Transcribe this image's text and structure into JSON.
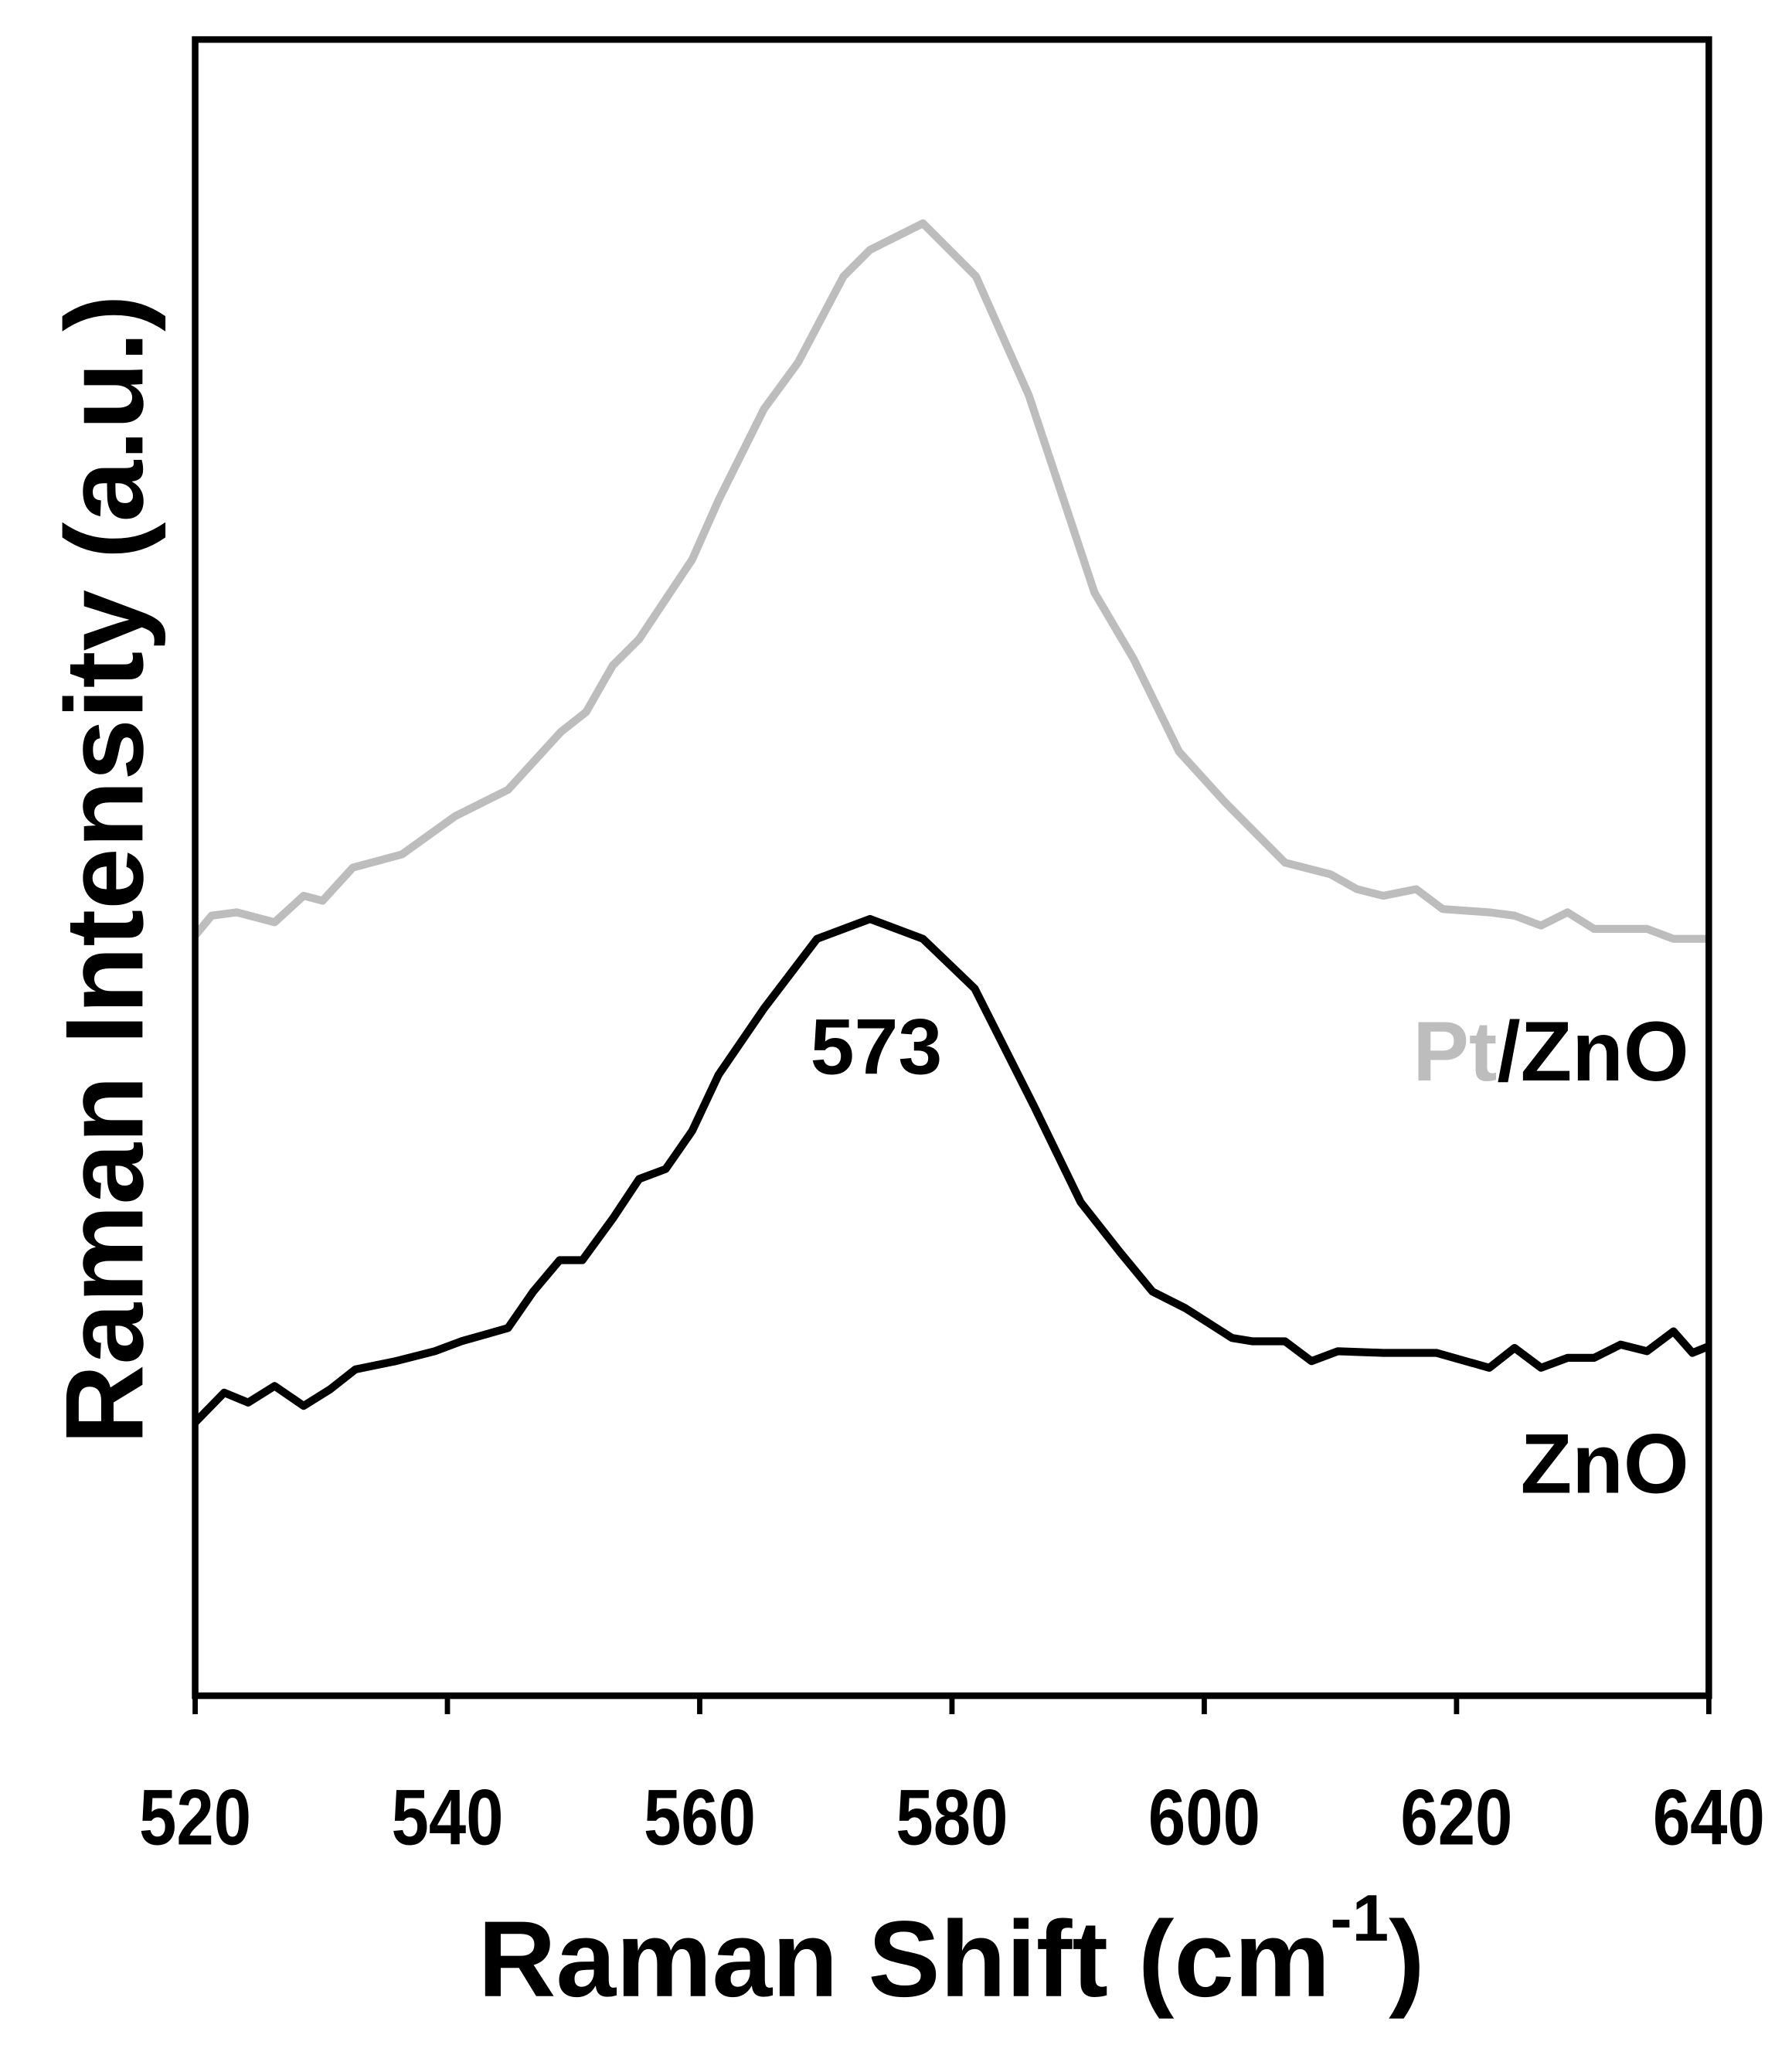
{
  "chart_data": {
    "type": "line",
    "xlabel": [
      "Raman Shift (cm",
      "-1",
      ")"
    ],
    "ylabel": "Raman Intensity (a.u.)",
    "xlim": [
      520,
      640
    ],
    "xticks": [
      520,
      540,
      560,
      580,
      600,
      620,
      640
    ],
    "ylim": [
      0,
      100
    ],
    "annotations": [
      "573"
    ],
    "series": [
      {
        "name_parts": [
          "Pt",
          "/ZnO"
        ],
        "name_colors": [
          "#bdbdbd",
          "#000000"
        ],
        "color": "#bdbdbd",
        "x": [
          520,
          521.3,
          523.3,
          526.3,
          528.6,
          530.1,
          532.5,
          536.4,
          540.6,
          544.8,
          549.0,
          551.0,
          553.1,
          555.2,
          559.4,
          561.5,
          565.1,
          567.8,
          571.4,
          573.5,
          577.7,
          581.9,
          586.1,
          588.2,
          591.3,
          594.4,
          598.0,
          601.7,
          606.4,
          610.0,
          612.1,
          614.2,
          616.8,
          618.9,
          622.6,
          624.6,
          626.7,
          628.8,
          630.9,
          635.1,
          637.2,
          640
        ],
        "values": [
          45.9,
          47.1,
          47.3,
          46.7,
          48.3,
          48.0,
          50.0,
          50.8,
          53.1,
          54.7,
          58.2,
          59.4,
          62.2,
          63.8,
          68.6,
          72.2,
          77.7,
          80.5,
          85.7,
          87.3,
          88.9,
          85.7,
          78.5,
          73.7,
          66.6,
          62.6,
          57.0,
          53.9,
          50.3,
          49.6,
          48.7,
          48.3,
          48.7,
          47.5,
          47.3,
          47.1,
          46.5,
          47.3,
          46.3,
          46.3,
          45.7,
          45.7
        ]
      },
      {
        "name": "ZnO",
        "color": "#000000",
        "x": [
          520,
          522.3,
          524.2,
          526.3,
          528.6,
          530.7,
          532.7,
          535.9,
          539.0,
          541.1,
          544.8,
          546.8,
          548.9,
          550.7,
          553.1,
          555.2,
          557.3,
          559.4,
          561.5,
          565.1,
          569.3,
          573.5,
          577.7,
          581.8,
          586.5,
          590.2,
          593.3,
          595.9,
          598.5,
          602.2,
          603.8,
          606.4,
          608.5,
          610.6,
          614.2,
          618.4,
          622.6,
          624.6,
          626.7,
          628.8,
          630.9,
          633.0,
          635.1,
          637.2,
          638.7,
          640
        ],
        "values": [
          16.5,
          18.3,
          17.7,
          18.7,
          17.5,
          18.5,
          19.7,
          20.2,
          20.8,
          21.4,
          22.2,
          24.4,
          26.3,
          26.3,
          28.8,
          31.2,
          31.8,
          34.1,
          37.5,
          41.5,
          45.7,
          46.9,
          45.7,
          42.7,
          35.6,
          29.8,
          26.8,
          24.4,
          23.4,
          21.6,
          21.4,
          21.4,
          20.2,
          20.8,
          20.7,
          20.7,
          19.8,
          21.0,
          19.8,
          20.4,
          20.4,
          21.2,
          20.8,
          22.0,
          20.7,
          21.1
        ]
      }
    ]
  }
}
